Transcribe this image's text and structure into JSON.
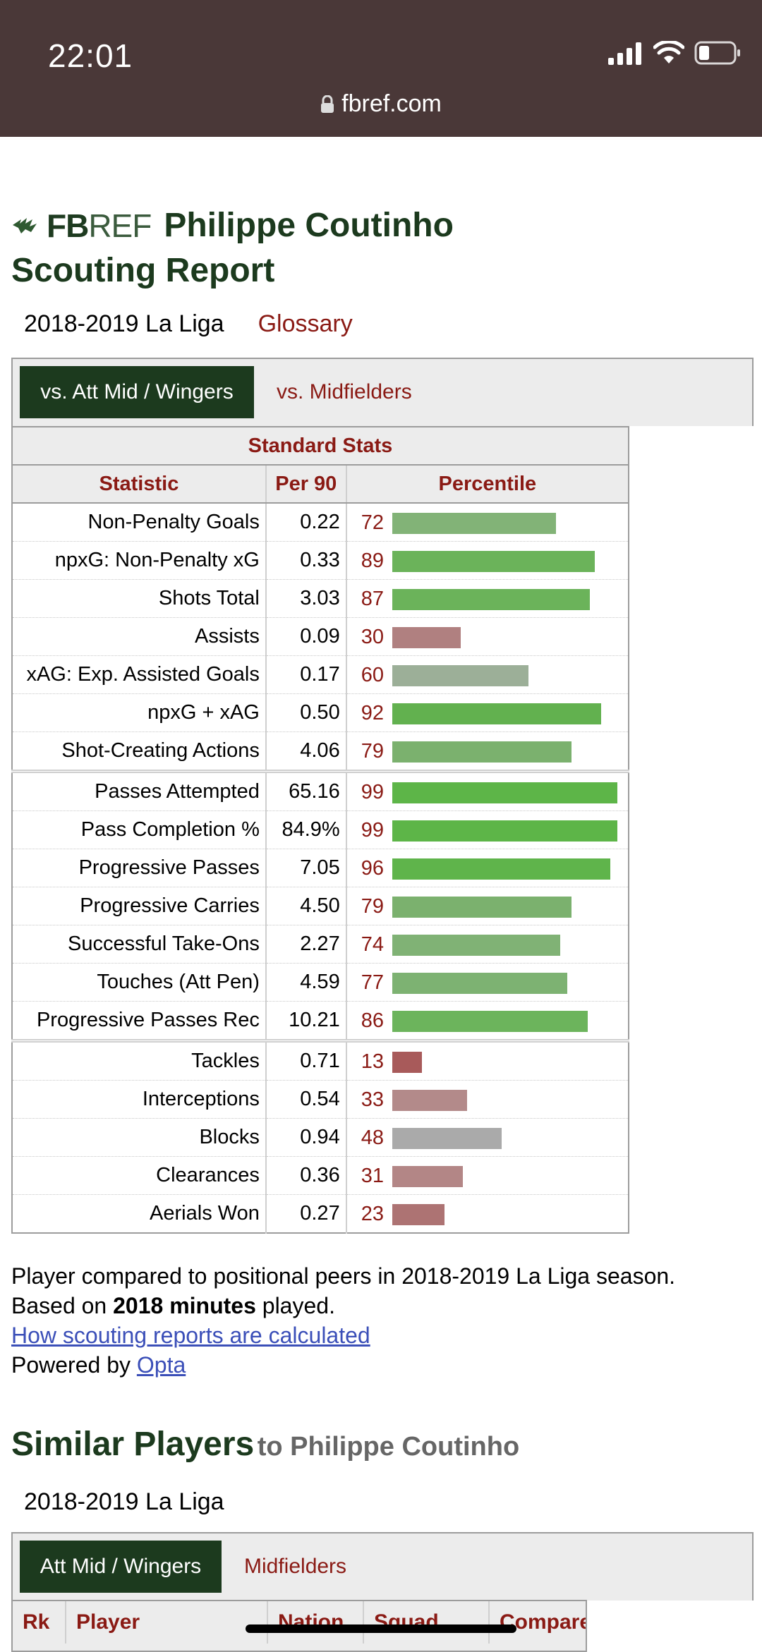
{
  "status_bar": {
    "time": "22:01",
    "url": "fbref.com"
  },
  "logo": {
    "fb": "FB",
    "ref": "REF"
  },
  "title": {
    "line1": "Philippe Coutinho",
    "line2": "Scouting Report"
  },
  "season": "2018-2019 La Liga",
  "glossary": "Glossary",
  "tabs": [
    "vs. Att Mid / Wingers",
    "vs. Midfielders"
  ],
  "table": {
    "caption": "Standard Stats",
    "headers": [
      "Statistic",
      "Per 90",
      "Percentile"
    ],
    "rows": [
      {
        "stat": "Non-Penalty Goals",
        "per90": "0.22",
        "pct": 72,
        "color": "#82b377",
        "sep": false
      },
      {
        "stat": "npxG: Non-Penalty xG",
        "per90": "0.33",
        "pct": 89,
        "color": "#6bb35a",
        "sep": false
      },
      {
        "stat": "Shots Total",
        "per90": "3.03",
        "pct": 87,
        "color": "#6bb35a",
        "sep": false
      },
      {
        "stat": "Assists",
        "per90": "0.09",
        "pct": 30,
        "color": "#b08080",
        "sep": false
      },
      {
        "stat": "xAG: Exp. Assisted Goals",
        "per90": "0.17",
        "pct": 60,
        "color": "#9caf98",
        "sep": false
      },
      {
        "stat": "npxG + xAG",
        "per90": "0.50",
        "pct": 92,
        "color": "#62b14f",
        "sep": false
      },
      {
        "stat": "Shot-Creating Actions",
        "per90": "4.06",
        "pct": 79,
        "color": "#7bb16e",
        "sep": false
      },
      {
        "stat": "Passes Attempted",
        "per90": "65.16",
        "pct": 99,
        "color": "#5db548",
        "sep": true
      },
      {
        "stat": "Pass Completion %",
        "per90": "84.9%",
        "pct": 99,
        "color": "#5db548",
        "sep": false
      },
      {
        "stat": "Progressive Passes",
        "per90": "7.05",
        "pct": 96,
        "color": "#5fb44b",
        "sep": false
      },
      {
        "stat": "Progressive Carries",
        "per90": "4.50",
        "pct": 79,
        "color": "#7bb16e",
        "sep": false
      },
      {
        "stat": "Successful Take-Ons",
        "per90": "2.27",
        "pct": 74,
        "color": "#80b275",
        "sep": false
      },
      {
        "stat": "Touches (Att Pen)",
        "per90": "4.59",
        "pct": 77,
        "color": "#7db272",
        "sep": false
      },
      {
        "stat": "Progressive Passes Rec",
        "per90": "10.21",
        "pct": 86,
        "color": "#6cb45c",
        "sep": false
      },
      {
        "stat": "Tackles",
        "per90": "0.71",
        "pct": 13,
        "color": "#a85a5a",
        "sep": true
      },
      {
        "stat": "Interceptions",
        "per90": "0.54",
        "pct": 33,
        "color": "#b38a8a",
        "sep": false
      },
      {
        "stat": "Blocks",
        "per90": "0.94",
        "pct": 48,
        "color": "#aaaaaa",
        "sep": false
      },
      {
        "stat": "Clearances",
        "per90": "0.36",
        "pct": 31,
        "color": "#b38686",
        "sep": false
      },
      {
        "stat": "Aerials Won",
        "per90": "0.27",
        "pct": 23,
        "color": "#ad7373",
        "sep": false
      }
    ]
  },
  "note": {
    "line1": "Player compared to positional peers in 2018-2019 La Liga season.",
    "line2_pre": "Based on ",
    "line2_bold": "2018 minutes",
    "line2_post": " played.",
    "link": "How scouting reports are calculated",
    "powered_pre": "Powered by ",
    "powered_link": "Opta"
  },
  "similar": {
    "title": "Similar Players",
    "subtitle": "to Philippe Coutinho",
    "season": "2018-2019 La Liga",
    "tabs": [
      "Att Mid / Wingers",
      "Midfielders"
    ],
    "headers": [
      "Rk",
      "Player",
      "Nation",
      "Squad",
      "Compare"
    ]
  }
}
